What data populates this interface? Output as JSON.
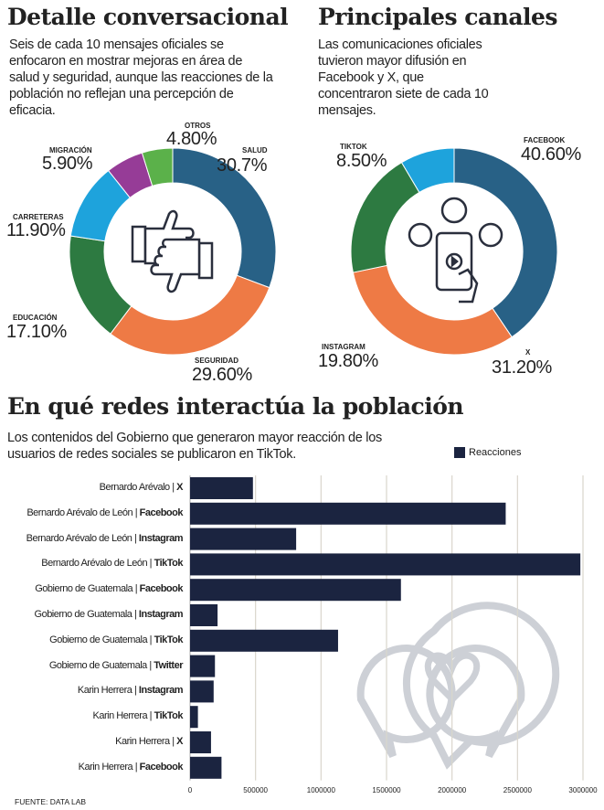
{
  "colors": {
    "navy": "#1b2440",
    "grid": "#d9d6cc",
    "watermark": "#cdd0d6"
  },
  "chart_data": [
    {
      "type": "pie",
      "donut": true,
      "title": "Detalle conversacional",
      "subtitle": "Seis de cada 10 mensajes oficiales se enfocaron en mostrar mejoras en área de salud y seguridad, aunque las reacciones de la población no reflejan  una percepción de eficacia.",
      "center_icon": "thumbs-up-down-icon",
      "slices": [
        {
          "label": "SALUD",
          "value": 30.7,
          "text": "30.7%",
          "color": "#286186"
        },
        {
          "label": "SEGURIDAD",
          "value": 29.6,
          "text": "29.60%",
          "color": "#ee7a45"
        },
        {
          "label": "EDUCACIÓN",
          "value": 17.1,
          "text": "17.10%",
          "color": "#2d7a41"
        },
        {
          "label": "CARRETERAS",
          "value": 11.9,
          "text": "11.90%",
          "color": "#1ea3dc"
        },
        {
          "label": "MIGRACIÓN",
          "value": 5.9,
          "text": "5.90%",
          "color": "#963c97"
        },
        {
          "label": "OTROS",
          "value": 4.8,
          "text": "4.80%",
          "color": "#5bb14a"
        }
      ]
    },
    {
      "type": "pie",
      "donut": true,
      "title": "Principales canales",
      "subtitle": "Las comunicaciones oficiales tuvieron mayor difusión en Facebook y X, que concentraron siete de cada 10 mensajes.",
      "center_icon": "phone-social-icon",
      "slices": [
        {
          "label": "FACEBOOK",
          "value": 40.6,
          "text": "40.60%",
          "color": "#286186"
        },
        {
          "label": "X",
          "value": 31.2,
          "text": "31.20%",
          "color": "#ee7a45"
        },
        {
          "label": "INSTAGRAM",
          "value": 19.8,
          "text": "19.80%",
          "color": "#2d7a41"
        },
        {
          "label": "TIKTOK",
          "value": 8.5,
          "text": "8.50%",
          "color": "#1ea3dc"
        }
      ]
    },
    {
      "type": "bar",
      "orientation": "horizontal",
      "title": "En qué redes interactúa la población",
      "subtitle": "Los contenidos del Gobierno que generaron mayor reacción de los usuarios de redes sociales se publicaron en TikTok.",
      "legend": {
        "position": "top-right",
        "entries": [
          "Reacciones"
        ]
      },
      "xlim": [
        0,
        3000000
      ],
      "grid": true,
      "xticks": [
        "0",
        "500000",
        "1000000",
        "1500000",
        "2000000",
        "2500000",
        "3000000"
      ],
      "categories": [
        {
          "account": "Bernardo Arévalo",
          "network": "X"
        },
        {
          "account": "Bernardo Arévalo de León",
          "network": "Facebook"
        },
        {
          "account": "Bernardo Arévalo de León",
          "network": "Instagram"
        },
        {
          "account": "Bernardo Arévalo de León",
          "network": "TikTok"
        },
        {
          "account": "Gobierno de Guatemala",
          "network": "Facebook"
        },
        {
          "account": "Gobierno de Guatemala",
          "network": "Instagram"
        },
        {
          "account": "Gobierno de Guatemala",
          "network": "TikTok"
        },
        {
          "account": "Gobierno de Guatemala",
          "network": "Twitter"
        },
        {
          "account": "Karin Herrera",
          "network": "Instagram"
        },
        {
          "account": "Karin Herrera",
          "network": "TikTok"
        },
        {
          "account": "Karin Herrera",
          "network": "X"
        },
        {
          "account": "Karin Herrera",
          "network": "Facebook"
        }
      ],
      "series": [
        {
          "name": "Reacciones",
          "values": [
            480000,
            2410000,
            810000,
            2980000,
            1610000,
            210000,
            1130000,
            190000,
            180000,
            60000,
            160000,
            240000
          ]
        }
      ]
    }
  ],
  "source": "FUENTE: DATA LAB"
}
